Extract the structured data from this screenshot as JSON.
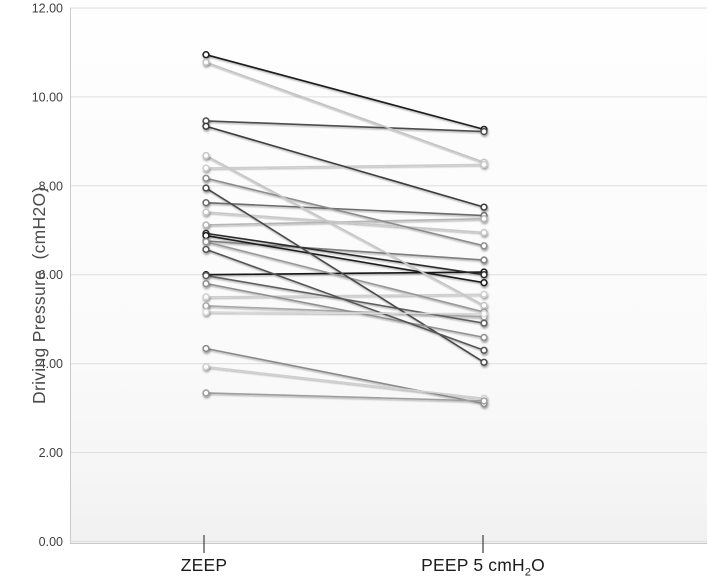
{
  "chart_data": {
    "type": "line",
    "subtype": "paired-slope-graph",
    "title": "",
    "xlabel": "",
    "ylabel": "Driving Pressure  (cmH2O)",
    "categories": [
      "ZEEP",
      "PEEP 5 cmH2O"
    ],
    "x_category_display": {
      "zeep": "ZEEP",
      "peep_pre": "PEEP 5 cmH",
      "peep_sub": "2",
      "peep_post": "O"
    },
    "ylim": [
      0,
      12
    ],
    "yticks": [
      "0.00",
      "2.00",
      "4.00",
      "6.00",
      "8.00",
      "10.00",
      "12.00"
    ],
    "grid": true,
    "legend": false,
    "marker_fill": "#fdfdfd",
    "grid_color": "#dedede",
    "axis_color": "#c9c9c9",
    "category_tick_color": "#595959",
    "pairs": [
      {
        "zeep": 10.95,
        "peep": 9.27,
        "color": "#1c1c1c"
      },
      {
        "zeep": 9.46,
        "peep": 9.22,
        "color": "#4d4d4d"
      },
      {
        "zeep": 10.78,
        "peep": 8.53,
        "color": "#c3c3c3"
      },
      {
        "zeep": 8.4,
        "peep": 8.48,
        "color": "#cdcdcd"
      },
      {
        "zeep": 9.34,
        "peep": 7.52,
        "color": "#3d3d3d"
      },
      {
        "zeep": 7.62,
        "peep": 7.33,
        "color": "#6b6b6b"
      },
      {
        "zeep": 7.12,
        "peep": 7.26,
        "color": "#b5b5b5"
      },
      {
        "zeep": 7.41,
        "peep": 6.95,
        "color": "#c8c8c8"
      },
      {
        "zeep": 8.17,
        "peep": 6.65,
        "color": "#8c8c8c"
      },
      {
        "zeep": 6.76,
        "peep": 6.33,
        "color": "#7d7d7d"
      },
      {
        "zeep": 6.0,
        "peep": 6.06,
        "color": "#161616"
      },
      {
        "zeep": 6.93,
        "peep": 6.0,
        "color": "#2b2b2b"
      },
      {
        "zeep": 6.88,
        "peep": 5.82,
        "color": "#1f1f1f"
      },
      {
        "zeep": 5.5,
        "peep": 5.56,
        "color": "#cfcfcf"
      },
      {
        "zeep": 8.68,
        "peep": 5.31,
        "color": "#c6c6c6"
      },
      {
        "zeep": 6.74,
        "peep": 5.16,
        "color": "#989898"
      },
      {
        "zeep": 5.3,
        "peep": 5.05,
        "color": "#a8a8a8"
      },
      {
        "zeep": 5.98,
        "peep": 4.91,
        "color": "#5e5e5e"
      },
      {
        "zeep": 7.95,
        "peep": 4.03,
        "color": "#4a4a4a"
      },
      {
        "zeep": 5.8,
        "peep": 4.59,
        "color": "#909090"
      },
      {
        "zeep": 6.57,
        "peep": 4.3,
        "color": "#565656"
      },
      {
        "zeep": 5.16,
        "peep": 5.12,
        "color": "#d8d8d8"
      },
      {
        "zeep": 4.34,
        "peep": 3.1,
        "color": "#8a8a8a"
      },
      {
        "zeep": 3.93,
        "peep": 3.22,
        "color": "#cfcfcf"
      },
      {
        "zeep": 3.34,
        "peep": 3.16,
        "color": "#9e9e9e"
      }
    ]
  }
}
